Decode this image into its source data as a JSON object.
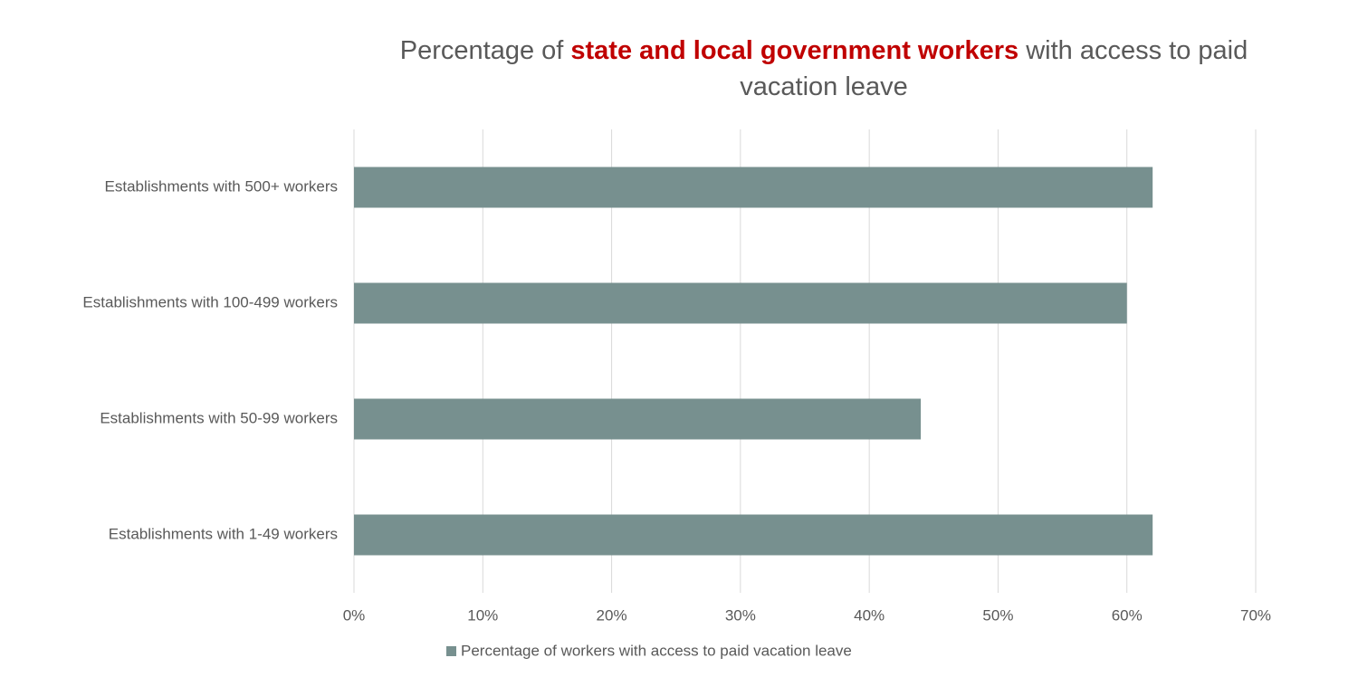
{
  "chart_data": {
    "type": "barh",
    "title": [
      "Percentage of ",
      "state and local government workers",
      " with access to paid vacation leave"
    ],
    "categories": [
      "Establishments with 500+ workers",
      "Establishments with 100-499 workers",
      "Establishments with 50-99 workers",
      "Establishments with 1-49 workers"
    ],
    "series": [
      {
        "name": "Percentage of workers with access to paid vacation leave",
        "color": "#77908f",
        "values": [
          62,
          60,
          44,
          62
        ]
      }
    ],
    "xlim": [
      0,
      70
    ],
    "xticks": [
      {
        "value": 0,
        "label": "0%"
      },
      {
        "value": 10,
        "label": "10%"
      },
      {
        "value": 20,
        "label": "20%"
      },
      {
        "value": 30,
        "label": "30%"
      },
      {
        "value": 40,
        "label": "40%"
      },
      {
        "value": 50,
        "label": "50%"
      },
      {
        "value": 60,
        "label": "60%"
      },
      {
        "value": 70,
        "label": "70%"
      }
    ],
    "grid": true,
    "legend": "bottom"
  }
}
